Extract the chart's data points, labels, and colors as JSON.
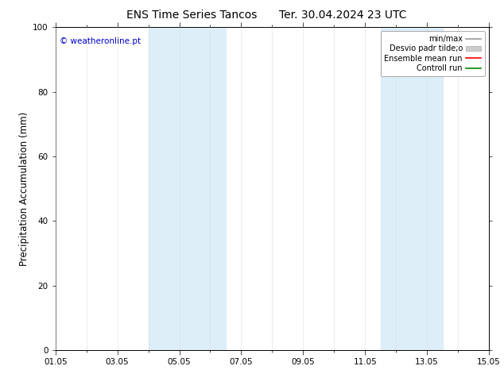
{
  "title": "ENS Time Series Tancos",
  "title2": "Ter. 30.04.2024 23 UTC",
  "ylabel": "Precipitation Accumulation (mm)",
  "watermark": "© weatheronline.pt",
  "ylim": [
    0,
    100
  ],
  "yticks": [
    0,
    20,
    40,
    60,
    80,
    100
  ],
  "xtick_labels": [
    "01.05",
    "03.05",
    "05.05",
    "07.05",
    "09.05",
    "11.05",
    "13.05",
    "15.05"
  ],
  "xtick_positions_days": [
    0,
    2,
    4,
    6,
    8,
    10,
    12,
    14
  ],
  "shade_bands": [
    {
      "start_day": 3.0,
      "end_day": 5.5
    },
    {
      "start_day": 10.5,
      "end_day": 12.5
    }
  ],
  "shade_color": "#ddeef8",
  "background_color": "#ffffff",
  "legend_items": [
    {
      "label": "min/max",
      "type": "line",
      "color": "#999999",
      "linewidth": 1.2
    },
    {
      "label": "Desvio padr tilde;o",
      "type": "patch",
      "facecolor": "#cccccc",
      "edgecolor": "#aaaaaa"
    },
    {
      "label": "Ensemble mean run",
      "type": "line",
      "color": "#ff0000",
      "linewidth": 1.2
    },
    {
      "label": "Controll run",
      "type": "line",
      "color": "#008800",
      "linewidth": 1.2
    }
  ],
  "watermark_color": "#0000cc",
  "title_fontsize": 10,
  "tick_fontsize": 7.5,
  "ylabel_fontsize": 8.5,
  "legend_fontsize": 7,
  "fig_width": 6.34,
  "fig_height": 4.9,
  "dpi": 100
}
